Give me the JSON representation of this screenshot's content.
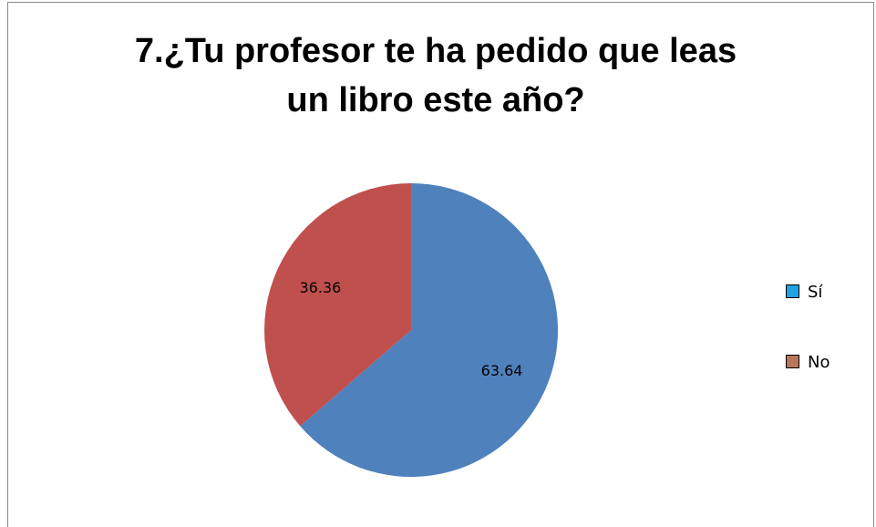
{
  "chart_data": {
    "type": "pie",
    "title": [
      "7.¿Tu profesor te ha pedido que leas",
      "un libro este año?"
    ],
    "categories": [
      "Sí",
      "No"
    ],
    "values": [
      63.64,
      36.36
    ],
    "colors": [
      "#4f81bd",
      "#c0504d"
    ],
    "legend_colors": [
      "#1ea3e6",
      "#b8765a"
    ],
    "legend": "right"
  }
}
